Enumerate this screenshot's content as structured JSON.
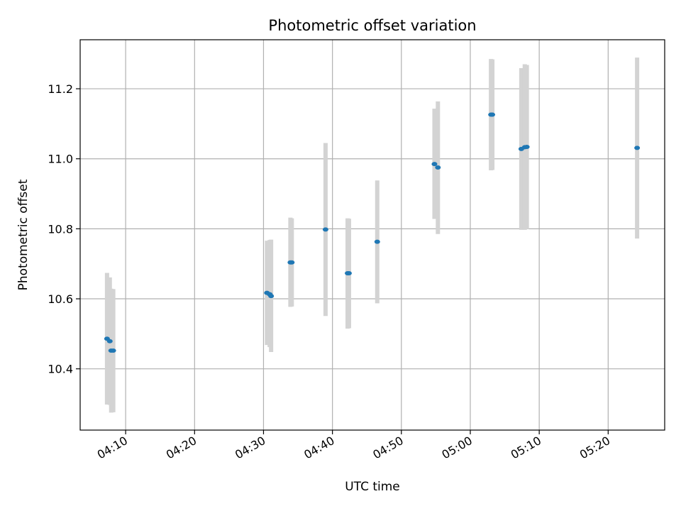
{
  "chart_data": {
    "type": "scatter",
    "title": "Photometric offset variation",
    "xlabel": "UTC time",
    "ylabel": "Photometric offset",
    "x_ticks": [
      "04:10",
      "04:20",
      "04:30",
      "04:40",
      "04:50",
      "05:00",
      "05:10",
      "05:20"
    ],
    "x_tick_minutes": [
      250,
      260,
      270,
      280,
      290,
      300,
      310,
      320
    ],
    "xlim_minutes": [
      243.4,
      328.2
    ],
    "y_ticks": [
      "10.4",
      "10.6",
      "10.8",
      "11.0",
      "11.2"
    ],
    "y_tick_values": [
      10.4,
      10.6,
      10.8,
      11.0,
      11.2
    ],
    "ylim": [
      10.225,
      11.34
    ],
    "grid": true,
    "colors": {
      "point": "#1f77b4",
      "errorbar": "#d3d3d3",
      "grid": "#b0b0b0"
    },
    "points": [
      {
        "t": 247.3,
        "y": 10.486,
        "lo": 10.298,
        "hi": 10.674
      },
      {
        "t": 247.7,
        "y": 10.479,
        "lo": 10.297,
        "hi": 10.661
      },
      {
        "t": 247.9,
        "y": 10.452,
        "lo": 10.275,
        "hi": 10.629
      },
      {
        "t": 248.2,
        "y": 10.452,
        "lo": 10.276,
        "hi": 10.628
      },
      {
        "t": 270.5,
        "y": 10.617,
        "lo": 10.468,
        "hi": 10.766
      },
      {
        "t": 270.9,
        "y": 10.613,
        "lo": 10.462,
        "hi": 10.768
      },
      {
        "t": 271.1,
        "y": 10.608,
        "lo": 10.448,
        "hi": 10.769
      },
      {
        "t": 273.9,
        "y": 10.704,
        "lo": 10.577,
        "hi": 10.832
      },
      {
        "t": 274.1,
        "y": 10.704,
        "lo": 10.578,
        "hi": 10.83
      },
      {
        "t": 279.0,
        "y": 10.798,
        "lo": 10.551,
        "hi": 11.045
      },
      {
        "t": 282.2,
        "y": 10.673,
        "lo": 10.515,
        "hi": 10.83
      },
      {
        "t": 282.4,
        "y": 10.673,
        "lo": 10.516,
        "hi": 10.829
      },
      {
        "t": 286.5,
        "y": 10.763,
        "lo": 10.587,
        "hi": 10.938
      },
      {
        "t": 294.8,
        "y": 10.985,
        "lo": 10.828,
        "hi": 11.143
      },
      {
        "t": 295.3,
        "y": 10.975,
        "lo": 10.785,
        "hi": 11.164
      },
      {
        "t": 303.0,
        "y": 11.126,
        "lo": 10.967,
        "hi": 11.285
      },
      {
        "t": 303.2,
        "y": 11.126,
        "lo": 10.968,
        "hi": 11.284
      },
      {
        "t": 307.4,
        "y": 11.028,
        "lo": 10.797,
        "hi": 11.259
      },
      {
        "t": 307.9,
        "y": 11.033,
        "lo": 10.797,
        "hi": 11.27
      },
      {
        "t": 308.2,
        "y": 11.034,
        "lo": 10.799,
        "hi": 11.268
      },
      {
        "t": 324.2,
        "y": 11.031,
        "lo": 10.772,
        "hi": 11.289
      }
    ]
  }
}
